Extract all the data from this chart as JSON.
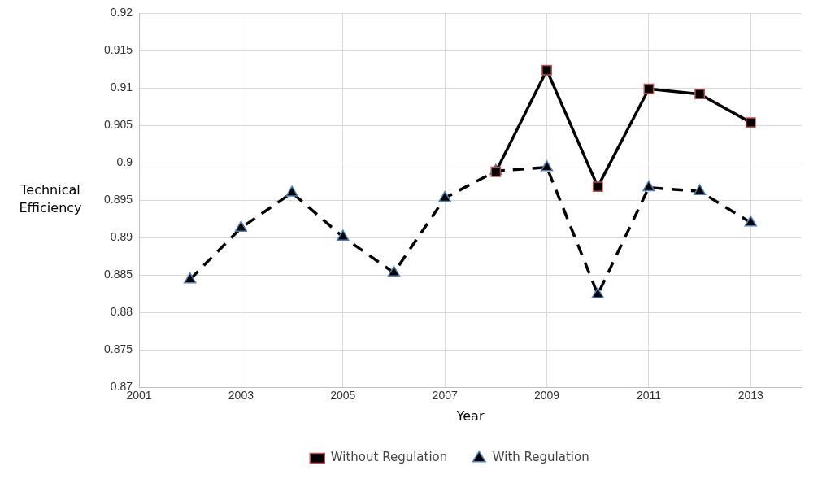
{
  "chart_data": {
    "type": "line",
    "xlabel": "Year",
    "ylabel": "Technical Efficiency",
    "x": [
      2002,
      2003,
      2004,
      2005,
      2006,
      2007,
      2008,
      2009,
      2010,
      2011,
      2012,
      2013
    ],
    "series": [
      {
        "name": "With Regulation",
        "color": "#000000",
        "marker": "triangle",
        "line_style": "dashed",
        "values": [
          0.8844,
          0.8913,
          0.896,
          0.8901,
          0.8853,
          0.8953,
          0.8989,
          0.8994,
          0.8824,
          0.8967,
          0.8962,
          0.892
        ]
      },
      {
        "name": "Without Regulation",
        "color": "#000000",
        "marker": "square",
        "line_style": "solid",
        "values": [
          null,
          null,
          null,
          null,
          null,
          null,
          0.8988,
          0.9124,
          0.8968,
          0.9099,
          0.9092,
          0.9054
        ]
      }
    ],
    "xlim": [
      2001,
      2014
    ],
    "xticks": [
      2001,
      2003,
      2005,
      2007,
      2009,
      2011,
      2013
    ],
    "ylim": [
      0.87,
      0.92
    ],
    "yticks": [
      0.87,
      0.875,
      0.88,
      0.885,
      0.89,
      0.895,
      0.9,
      0.905,
      0.91,
      0.915,
      0.92
    ],
    "grid": true,
    "legend": "bottom"
  }
}
